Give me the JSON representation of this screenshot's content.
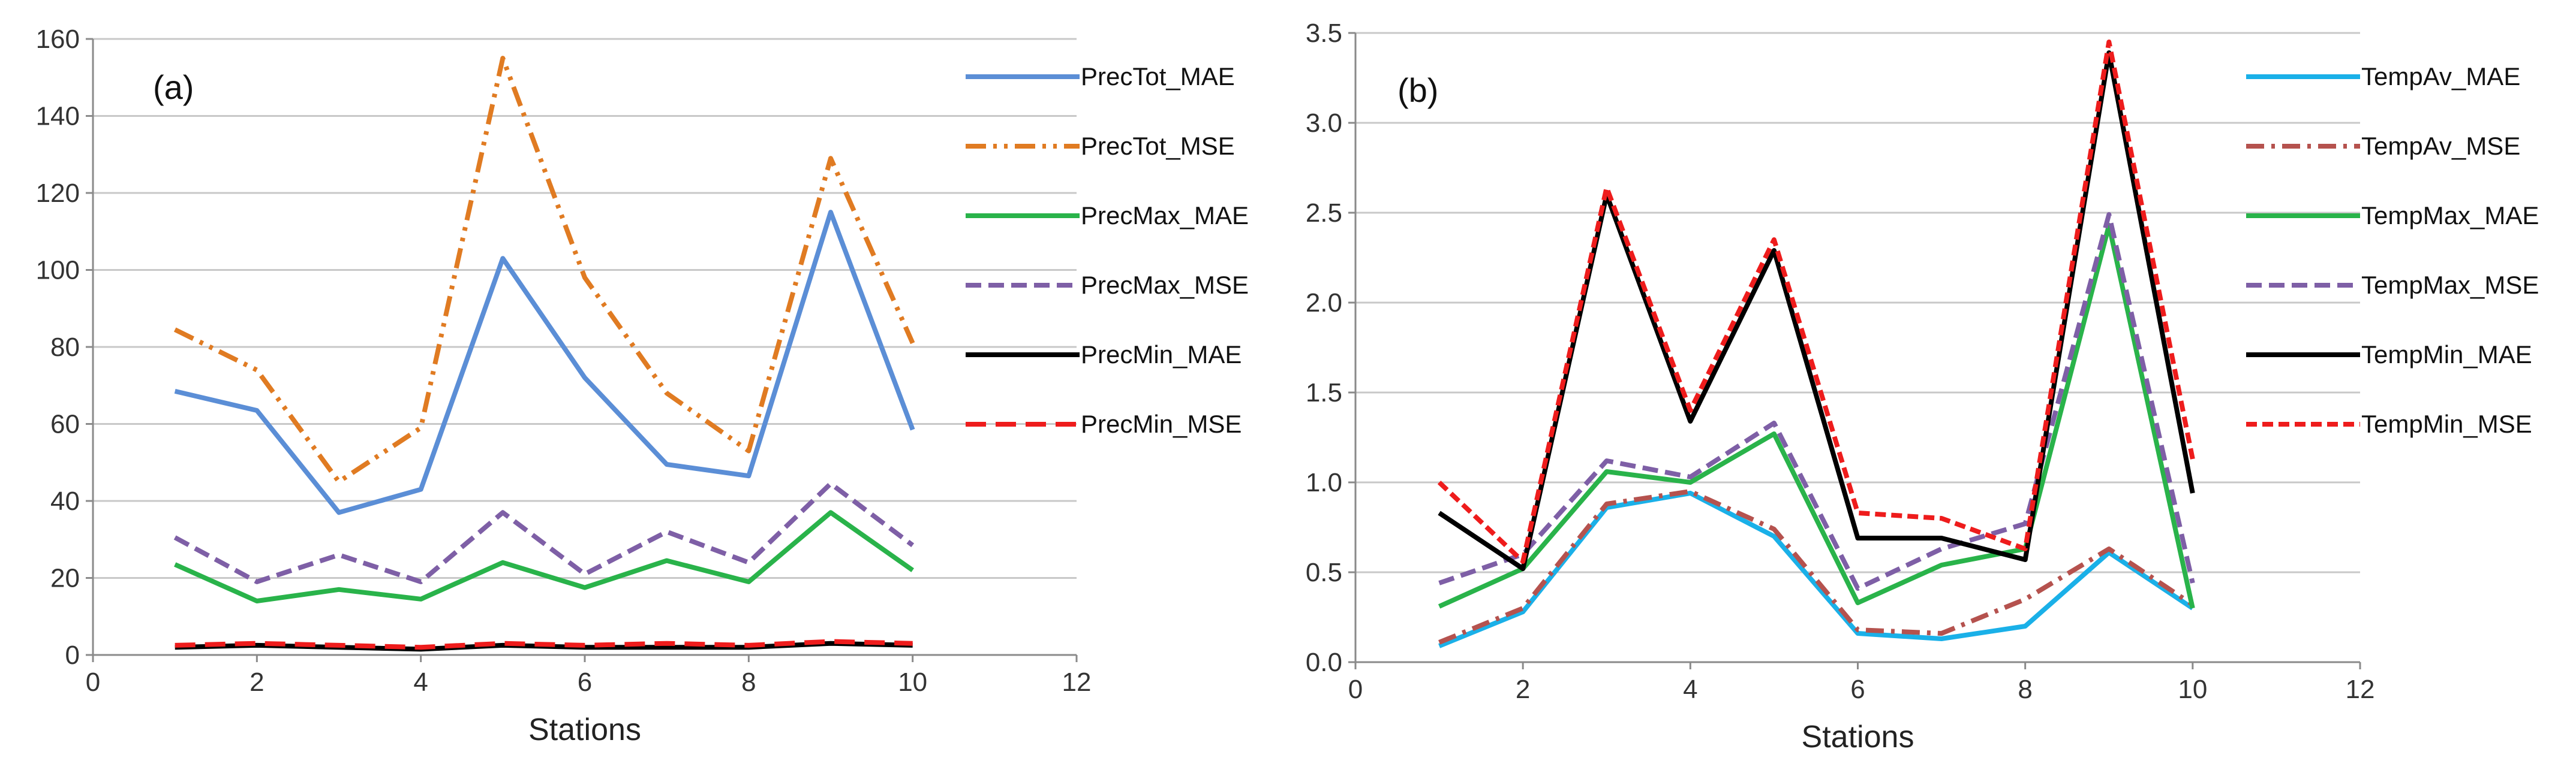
{
  "chart_data": [
    {
      "type": "line",
      "panel_label": "(a)",
      "xlabel": "Stations",
      "ylabel": "",
      "xlim": [
        0,
        12
      ],
      "ylim": [
        0,
        160
      ],
      "xticks": [
        0,
        2,
        4,
        6,
        8,
        10,
        12
      ],
      "yticks": [
        0,
        20,
        40,
        60,
        80,
        100,
        120,
        140,
        160
      ],
      "ytick_labels": [
        "0",
        "20",
        "40",
        "60",
        "80",
        "100",
        "120",
        "140",
        "160"
      ],
      "grid": "horizontal",
      "legend_position": "right",
      "x": [
        1,
        2,
        3,
        4,
        5,
        6,
        7,
        8,
        9,
        10
      ],
      "series": [
        {
          "name": "PrecTot_MAE",
          "color": "#5b8ed6",
          "style": "solid",
          "values": [
            68.5,
            63.5,
            37,
            43,
            103,
            72,
            49.5,
            46.5,
            115,
            58.5
          ]
        },
        {
          "name": "PrecTot_MSE",
          "color": "#e07b22",
          "style": "dashdotdot",
          "values": [
            84.5,
            74,
            45,
            59,
            155,
            98,
            68,
            53,
            129,
            81
          ]
        },
        {
          "name": "PrecMax_MAE",
          "color": "#29b34a",
          "style": "solid",
          "values": [
            23.5,
            14,
            17,
            14.5,
            24,
            17.5,
            24.5,
            19,
            37,
            22
          ]
        },
        {
          "name": "PrecMax_MSE",
          "color": "#7e5fa6",
          "style": "dashed",
          "values": [
            30.5,
            19,
            26,
            19,
            37,
            21,
            32,
            24,
            44.5,
            28.5
          ]
        },
        {
          "name": "PrecMin_MAE",
          "color": "#000000",
          "style": "solid",
          "values": [
            2,
            2.5,
            2,
            1.5,
            2.5,
            2,
            2,
            2,
            3,
            2.5
          ]
        },
        {
          "name": "PrecMin_MSE",
          "color": "#ee1c1c",
          "style": "longdash",
          "values": [
            2.5,
            3,
            2.5,
            2,
            3,
            2.5,
            3,
            2.5,
            3.5,
            3
          ]
        }
      ]
    },
    {
      "type": "line",
      "panel_label": "(b)",
      "xlabel": "Stations",
      "ylabel": "",
      "xlim": [
        0,
        12
      ],
      "ylim": [
        0,
        3.5
      ],
      "xticks": [
        0,
        2,
        4,
        6,
        8,
        10,
        12
      ],
      "yticks": [
        0,
        0.5,
        1,
        1.5,
        2,
        2.5,
        3,
        3.5
      ],
      "ytick_labels": [
        "0.0",
        "0.5",
        "1.0",
        "1.5",
        "2.0",
        "2.5",
        "3.0",
        "3.5"
      ],
      "grid": "horizontal",
      "legend_position": "right",
      "x": [
        1,
        2,
        3,
        4,
        5,
        6,
        7,
        8,
        9,
        10
      ],
      "series": [
        {
          "name": "TempAv_MAE",
          "color": "#1ab0e8",
          "style": "solid",
          "values": [
            0.09,
            0.28,
            0.86,
            0.94,
            0.7,
            0.16,
            0.13,
            0.2,
            0.61,
            0.3
          ]
        },
        {
          "name": "TempAv_MSE",
          "color": "#b5524e",
          "style": "dashdot",
          "values": [
            0.11,
            0.3,
            0.88,
            0.95,
            0.74,
            0.18,
            0.16,
            0.35,
            0.63,
            0.32
          ]
        },
        {
          "name": "TempMax_MAE",
          "color": "#29b34a",
          "style": "solid",
          "values": [
            0.31,
            0.52,
            1.06,
            1.0,
            1.27,
            0.33,
            0.54,
            0.63,
            2.43,
            0.3
          ]
        },
        {
          "name": "TempMax_MSE",
          "color": "#7e5fa6",
          "style": "dashed",
          "values": [
            0.44,
            0.6,
            1.12,
            1.03,
            1.33,
            0.41,
            0.63,
            0.77,
            2.49,
            0.44
          ]
        },
        {
          "name": "TempMin_MAE",
          "color": "#000000",
          "style": "solid",
          "values": [
            0.83,
            0.52,
            2.6,
            1.34,
            2.29,
            0.69,
            0.69,
            0.57,
            3.39,
            0.94
          ]
        },
        {
          "name": "TempMin_MSE",
          "color": "#ee1c1c",
          "style": "shortdash",
          "values": [
            1.0,
            0.56,
            2.64,
            1.4,
            2.35,
            0.83,
            0.8,
            0.63,
            3.45,
            1.13
          ]
        }
      ]
    }
  ]
}
